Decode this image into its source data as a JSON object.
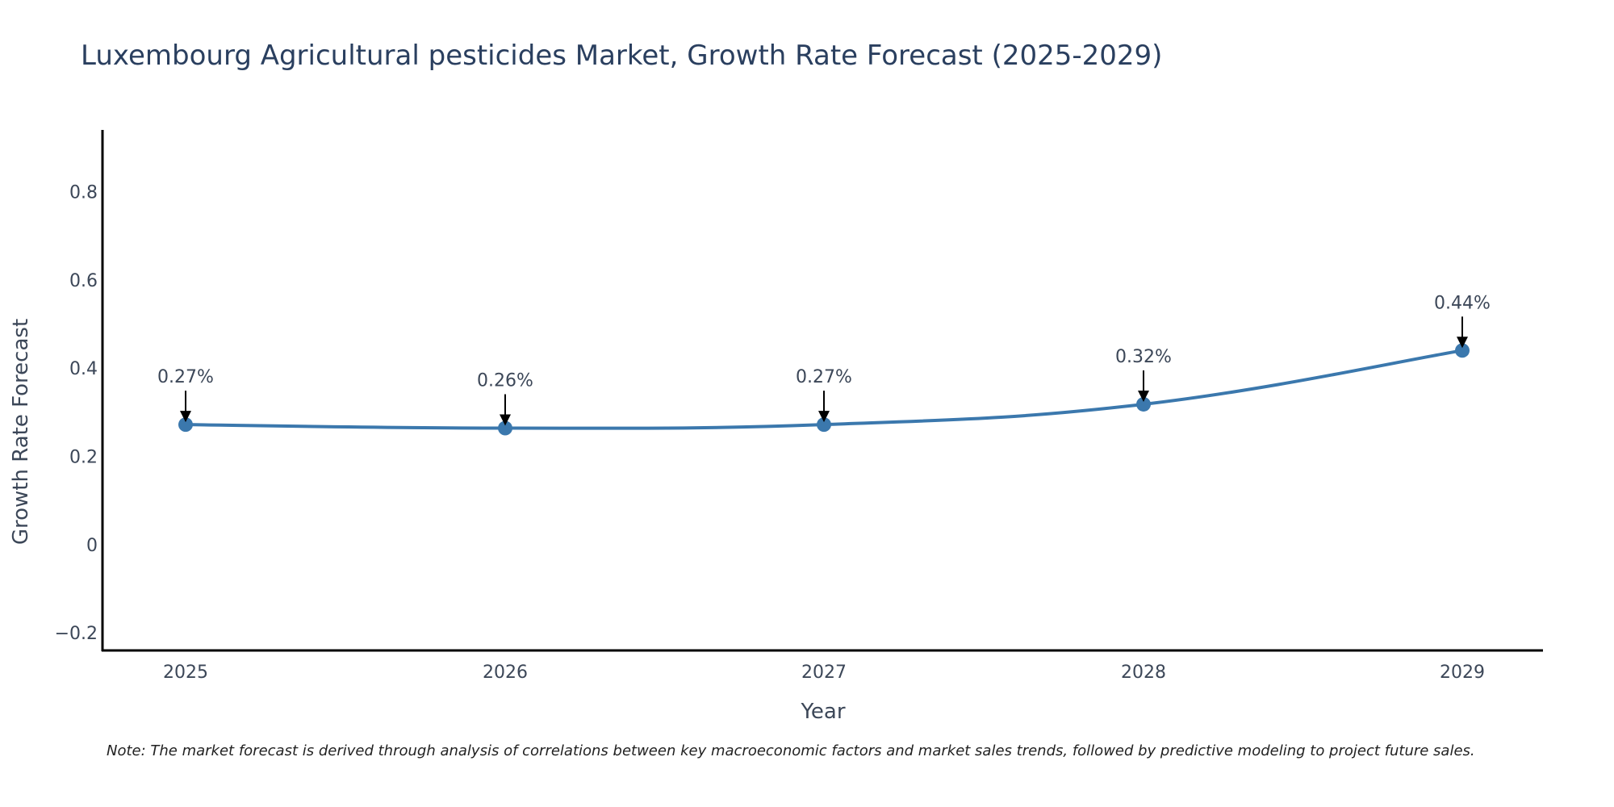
{
  "chart_data": {
    "type": "line",
    "title": "Luxembourg Agricultural pesticides Market, Growth Rate Forecast (2025-2029)",
    "xlabel": "Year",
    "ylabel": "Growth Rate Forecast",
    "categories": [
      "2025",
      "2026",
      "2027",
      "2028",
      "2029"
    ],
    "series": [
      {
        "name": "Growth Rate Forecast",
        "values": [
          0.272,
          0.264,
          0.272,
          0.318,
          0.44
        ],
        "labels": [
          "0.27%",
          "0.26%",
          "0.27%",
          "0.32%",
          "0.44%"
        ]
      }
    ],
    "ylim": [
      -0.24,
      0.94
    ],
    "yticks": [
      -0.2,
      0,
      0.2,
      0.4,
      0.6,
      0.8
    ],
    "ytick_labels": [
      "−0.2",
      "0",
      "0.2",
      "0.4",
      "0.6",
      "0.8"
    ],
    "line_color": "#3b78ad",
    "arrow_color": "#000000",
    "grid": false
  },
  "note": "Note: The market forecast is derived through analysis of correlations between key macroeconomic factors and market sales trends, followed by predictive modeling to project future sales."
}
